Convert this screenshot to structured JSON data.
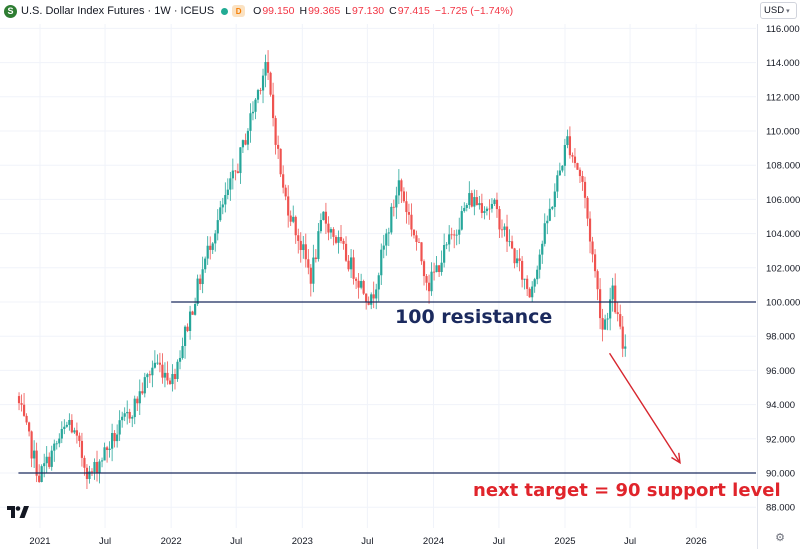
{
  "header": {
    "symbol_icon": "S",
    "title": "U.S. Dollar Index Futures · 1W · ICEUS",
    "status_dot_color": "#22ab94",
    "badge": "D",
    "ohlc": [
      {
        "label": "O",
        "value": "99.150"
      },
      {
        "label": "H",
        "value": "99.365"
      },
      {
        "label": "L",
        "value": "97.130"
      },
      {
        "label": "C",
        "value": "97.415"
      },
      {
        "label": "",
        "value": "−1.725 (−1.74%)"
      }
    ]
  },
  "currency": "USD",
  "icons": {
    "currency_dropdown": "chevron-down-icon",
    "settings": "gear-icon",
    "logo": "tradingview-logo"
  },
  "colors": {
    "up": "#26a69a",
    "down": "#ef5350",
    "annotation_line": "#1b2a5e",
    "annotation_text": "#1b2a5e",
    "target_text": "#e0242b",
    "arrow": "#d7262e"
  },
  "annotations": {
    "resistance_label": "100 resistance",
    "target_label": "next target = 90 support level"
  },
  "chart_data": {
    "type": "candlestick",
    "interval": "1W",
    "title": "U.S. Dollar Index Futures · 1W · ICEUS",
    "x_range": [
      "2020-11-02",
      "2026-03-30"
    ],
    "ylim": [
      87.0,
      117.0
    ],
    "y_axis_side": "right",
    "y_ticks": [
      "88.000",
      "90.000",
      "92.000",
      "94.000",
      "96.000",
      "98.000",
      "100.000",
      "102.000",
      "104.000",
      "106.000",
      "108.000",
      "110.000",
      "112.000",
      "114.000",
      "116.000"
    ],
    "x_ticks": [
      {
        "label": "2021",
        "date": "2021-01-01"
      },
      {
        "label": "Jul",
        "date": "2021-07-01"
      },
      {
        "label": "2022",
        "date": "2022-01-01"
      },
      {
        "label": "Jul",
        "date": "2022-07-01"
      },
      {
        "label": "2023",
        "date": "2023-01-01"
      },
      {
        "label": "Jul",
        "date": "2023-07-01"
      },
      {
        "label": "2024",
        "date": "2024-01-01"
      },
      {
        "label": "Jul",
        "date": "2024-07-01"
      },
      {
        "label": "2025",
        "date": "2025-01-01"
      },
      {
        "label": "Jul",
        "date": "2025-07-01"
      },
      {
        "label": "2026",
        "date": "2026-01-01"
      }
    ],
    "horizontal_lines": [
      {
        "value": 100.0,
        "from": "2022-01-01",
        "to": "2026-03-30",
        "label": "100 resistance"
      },
      {
        "value": 90.0,
        "from": "2020-11-02",
        "to": "2026-03-30",
        "label": "next target = 90 support level"
      }
    ],
    "arrow": {
      "from": {
        "date": "2025-05-05",
        "value": 97.0
      },
      "to": {
        "date": "2025-11-17",
        "value": 90.6
      }
    },
    "trend_keypoints": [
      {
        "date": "2020-11-02",
        "value": 94.5
      },
      {
        "date": "2021-01-04",
        "value": 89.8
      },
      {
        "date": "2021-03-29",
        "value": 93.0
      },
      {
        "date": "2021-05-24",
        "value": 89.8
      },
      {
        "date": "2021-09-27",
        "value": 94.0
      },
      {
        "date": "2021-11-22",
        "value": 96.5
      },
      {
        "date": "2022-01-10",
        "value": 95.5
      },
      {
        "date": "2022-04-25",
        "value": 103.5
      },
      {
        "date": "2022-07-11",
        "value": 108.0
      },
      {
        "date": "2022-09-26",
        "value": 114.0
      },
      {
        "date": "2022-11-14",
        "value": 106.5
      },
      {
        "date": "2023-01-30",
        "value": 101.5
      },
      {
        "date": "2023-03-06",
        "value": 105.0
      },
      {
        "date": "2023-07-17",
        "value": 100.0
      },
      {
        "date": "2023-10-02",
        "value": 107.0
      },
      {
        "date": "2023-12-25",
        "value": 101.0
      },
      {
        "date": "2024-04-15",
        "value": 106.0
      },
      {
        "date": "2024-06-24",
        "value": 105.5
      },
      {
        "date": "2024-09-30",
        "value": 100.5
      },
      {
        "date": "2025-01-13",
        "value": 109.5
      },
      {
        "date": "2025-02-24",
        "value": 107.0
      },
      {
        "date": "2025-04-21",
        "value": 98.5
      },
      {
        "date": "2025-05-19",
        "value": 100.5
      },
      {
        "date": "2025-06-16",
        "value": 97.4
      }
    ]
  }
}
